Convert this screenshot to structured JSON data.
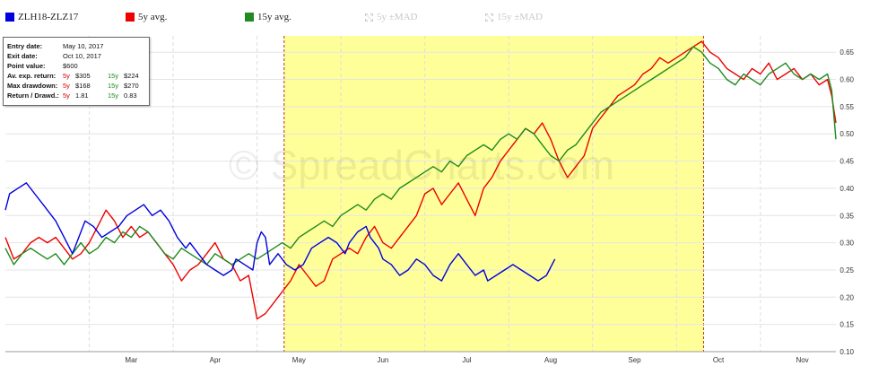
{
  "legend": {
    "items": [
      {
        "label": "ZLH18-ZLZ17",
        "color": "#0000dd",
        "enabled": true
      },
      {
        "label": "5y avg.",
        "color": "#ee0000",
        "enabled": true
      },
      {
        "label": "15y avg.",
        "color": "#1f8a1f",
        "enabled": true
      },
      {
        "label": "5y ±MAD",
        "color": "#cccccc",
        "enabled": false
      },
      {
        "label": "15y ±MAD",
        "color": "#cccccc",
        "enabled": false
      }
    ]
  },
  "info": {
    "entry_label": "Entry date:",
    "entry_value": "May 10, 2017",
    "exit_label": "Exit date:",
    "exit_value": "Oct 10, 2017",
    "point_label": "Point value:",
    "point_value": "$600",
    "avret_label": "Av. exp. return:",
    "avret_5y_tag": "5y",
    "avret_5y": "$305",
    "avret_15y_tag": "15y",
    "avret_15y": "$224",
    "maxdd_label": "Max drawdown:",
    "maxdd_5y_tag": "5y",
    "maxdd_5y": "$168",
    "maxdd_15y_tag": "15y",
    "maxdd_15y": "$270",
    "rd_label": "Return / Drawd.:",
    "rd_5y_tag": "5y",
    "rd_5y": "1.81",
    "rd_15y_tag": "15y",
    "rd_15y": "0.83"
  },
  "watermark": "© SpreadCharts.com",
  "chart_data": {
    "type": "line",
    "x_labels": [
      "Mar",
      "Apr",
      "May",
      "Jun",
      "Jul",
      "Aug",
      "Sep",
      "Oct",
      "Nov"
    ],
    "y_ticks": [
      "0.10",
      "0.15",
      "0.20",
      "0.25",
      "0.30",
      "0.35",
      "0.40",
      "0.45",
      "0.50",
      "0.55",
      "0.60",
      "0.65"
    ],
    "ylim": [
      0.1,
      0.68
    ],
    "xlim_months": [
      2.0,
      11.9
    ],
    "highlight": {
      "from": "May 10",
      "to": "Oct 10",
      "color": "#ffff99"
    },
    "series": [
      {
        "name": "ZLH18-ZLZ17",
        "color": "#0000dd",
        "points": [
          [
            2.0,
            0.36
          ],
          [
            2.05,
            0.39
          ],
          [
            2.15,
            0.4
          ],
          [
            2.25,
            0.41
          ],
          [
            2.35,
            0.39
          ],
          [
            2.45,
            0.37
          ],
          [
            2.6,
            0.34
          ],
          [
            2.7,
            0.31
          ],
          [
            2.8,
            0.28
          ],
          [
            2.85,
            0.3
          ],
          [
            2.95,
            0.34
          ],
          [
            3.05,
            0.33
          ],
          [
            3.15,
            0.31
          ],
          [
            3.25,
            0.32
          ],
          [
            3.35,
            0.33
          ],
          [
            3.45,
            0.35
          ],
          [
            3.55,
            0.36
          ],
          [
            3.65,
            0.37
          ],
          [
            3.75,
            0.35
          ],
          [
            3.85,
            0.36
          ],
          [
            3.95,
            0.34
          ],
          [
            4.05,
            0.31
          ],
          [
            4.15,
            0.29
          ],
          [
            4.2,
            0.3
          ],
          [
            4.3,
            0.28
          ],
          [
            4.4,
            0.26
          ],
          [
            4.5,
            0.25
          ],
          [
            4.6,
            0.24
          ],
          [
            4.7,
            0.25
          ],
          [
            4.75,
            0.27
          ],
          [
            4.85,
            0.26
          ],
          [
            4.95,
            0.25
          ],
          [
            5.0,
            0.3
          ],
          [
            5.05,
            0.32
          ],
          [
            5.1,
            0.31
          ],
          [
            5.15,
            0.26
          ],
          [
            5.25,
            0.28
          ],
          [
            5.35,
            0.26
          ],
          [
            5.45,
            0.25
          ],
          [
            5.55,
            0.26
          ],
          [
            5.65,
            0.29
          ],
          [
            5.75,
            0.3
          ],
          [
            5.85,
            0.31
          ],
          [
            5.95,
            0.3
          ],
          [
            6.05,
            0.28
          ],
          [
            6.1,
            0.3
          ],
          [
            6.2,
            0.32
          ],
          [
            6.3,
            0.33
          ],
          [
            6.35,
            0.31
          ],
          [
            6.45,
            0.29
          ],
          [
            6.5,
            0.27
          ],
          [
            6.6,
            0.26
          ],
          [
            6.7,
            0.24
          ],
          [
            6.8,
            0.25
          ],
          [
            6.9,
            0.27
          ],
          [
            7.0,
            0.26
          ],
          [
            7.1,
            0.24
          ],
          [
            7.2,
            0.23
          ],
          [
            7.3,
            0.26
          ],
          [
            7.4,
            0.28
          ],
          [
            7.5,
            0.26
          ],
          [
            7.6,
            0.24
          ],
          [
            7.7,
            0.25
          ],
          [
            7.75,
            0.23
          ],
          [
            7.85,
            0.24
          ],
          [
            7.95,
            0.25
          ],
          [
            8.05,
            0.26
          ],
          [
            8.15,
            0.25
          ],
          [
            8.25,
            0.24
          ],
          [
            8.35,
            0.23
          ],
          [
            8.45,
            0.24
          ],
          [
            8.55,
            0.27
          ]
        ]
      },
      {
        "name": "5y avg.",
        "color": "#ee0000",
        "points": [
          [
            2.0,
            0.31
          ],
          [
            2.1,
            0.27
          ],
          [
            2.2,
            0.28
          ],
          [
            2.3,
            0.3
          ],
          [
            2.4,
            0.31
          ],
          [
            2.5,
            0.3
          ],
          [
            2.6,
            0.31
          ],
          [
            2.7,
            0.29
          ],
          [
            2.8,
            0.27
          ],
          [
            2.9,
            0.28
          ],
          [
            3.0,
            0.3
          ],
          [
            3.1,
            0.33
          ],
          [
            3.2,
            0.36
          ],
          [
            3.3,
            0.34
          ],
          [
            3.4,
            0.31
          ],
          [
            3.5,
            0.33
          ],
          [
            3.6,
            0.31
          ],
          [
            3.7,
            0.32
          ],
          [
            3.8,
            0.3
          ],
          [
            3.9,
            0.28
          ],
          [
            4.0,
            0.26
          ],
          [
            4.1,
            0.23
          ],
          [
            4.2,
            0.25
          ],
          [
            4.3,
            0.26
          ],
          [
            4.4,
            0.28
          ],
          [
            4.5,
            0.3
          ],
          [
            4.6,
            0.27
          ],
          [
            4.7,
            0.26
          ],
          [
            4.8,
            0.23
          ],
          [
            4.9,
            0.24
          ],
          [
            5.0,
            0.16
          ],
          [
            5.1,
            0.17
          ],
          [
            5.2,
            0.19
          ],
          [
            5.3,
            0.21
          ],
          [
            5.4,
            0.23
          ],
          [
            5.5,
            0.26
          ],
          [
            5.6,
            0.24
          ],
          [
            5.7,
            0.22
          ],
          [
            5.8,
            0.23
          ],
          [
            5.9,
            0.27
          ],
          [
            6.0,
            0.28
          ],
          [
            6.1,
            0.29
          ],
          [
            6.2,
            0.28
          ],
          [
            6.3,
            0.31
          ],
          [
            6.4,
            0.33
          ],
          [
            6.5,
            0.3
          ],
          [
            6.6,
            0.29
          ],
          [
            6.7,
            0.31
          ],
          [
            6.8,
            0.33
          ],
          [
            6.9,
            0.35
          ],
          [
            7.0,
            0.39
          ],
          [
            7.1,
            0.4
          ],
          [
            7.2,
            0.37
          ],
          [
            7.3,
            0.39
          ],
          [
            7.4,
            0.41
          ],
          [
            7.5,
            0.38
          ],
          [
            7.6,
            0.35
          ],
          [
            7.7,
            0.4
          ],
          [
            7.8,
            0.42
          ],
          [
            7.9,
            0.45
          ],
          [
            8.0,
            0.47
          ],
          [
            8.1,
            0.49
          ],
          [
            8.2,
            0.51
          ],
          [
            8.3,
            0.5
          ],
          [
            8.4,
            0.52
          ],
          [
            8.5,
            0.49
          ],
          [
            8.6,
            0.45
          ],
          [
            8.7,
            0.42
          ],
          [
            8.8,
            0.44
          ],
          [
            8.9,
            0.46
          ],
          [
            9.0,
            0.51
          ],
          [
            9.1,
            0.53
          ],
          [
            9.2,
            0.55
          ],
          [
            9.3,
            0.57
          ],
          [
            9.4,
            0.58
          ],
          [
            9.5,
            0.59
          ],
          [
            9.6,
            0.61
          ],
          [
            9.7,
            0.62
          ],
          [
            9.8,
            0.64
          ],
          [
            9.9,
            0.63
          ],
          [
            10.0,
            0.64
          ],
          [
            10.1,
            0.65
          ],
          [
            10.2,
            0.66
          ],
          [
            10.3,
            0.67
          ],
          [
            10.4,
            0.65
          ],
          [
            10.5,
            0.64
          ],
          [
            10.6,
            0.62
          ],
          [
            10.7,
            0.61
          ],
          [
            10.8,
            0.6
          ],
          [
            10.9,
            0.62
          ],
          [
            11.0,
            0.61
          ],
          [
            11.1,
            0.63
          ],
          [
            11.2,
            0.6
          ],
          [
            11.3,
            0.61
          ],
          [
            11.4,
            0.62
          ],
          [
            11.5,
            0.6
          ],
          [
            11.6,
            0.61
          ],
          [
            11.7,
            0.59
          ],
          [
            11.8,
            0.6
          ],
          [
            11.85,
            0.57
          ],
          [
            11.9,
            0.52
          ]
        ]
      },
      {
        "name": "15y avg.",
        "color": "#1f8a1f",
        "points": [
          [
            2.0,
            0.29
          ],
          [
            2.1,
            0.26
          ],
          [
            2.2,
            0.28
          ],
          [
            2.3,
            0.29
          ],
          [
            2.4,
            0.28
          ],
          [
            2.5,
            0.27
          ],
          [
            2.6,
            0.28
          ],
          [
            2.7,
            0.26
          ],
          [
            2.8,
            0.28
          ],
          [
            2.9,
            0.3
          ],
          [
            3.0,
            0.28
          ],
          [
            3.1,
            0.29
          ],
          [
            3.2,
            0.31
          ],
          [
            3.3,
            0.3
          ],
          [
            3.4,
            0.32
          ],
          [
            3.5,
            0.31
          ],
          [
            3.6,
            0.33
          ],
          [
            3.7,
            0.32
          ],
          [
            3.8,
            0.3
          ],
          [
            3.9,
            0.28
          ],
          [
            4.0,
            0.27
          ],
          [
            4.1,
            0.29
          ],
          [
            4.2,
            0.28
          ],
          [
            4.3,
            0.27
          ],
          [
            4.4,
            0.26
          ],
          [
            4.5,
            0.28
          ],
          [
            4.6,
            0.27
          ],
          [
            4.7,
            0.26
          ],
          [
            4.8,
            0.27
          ],
          [
            4.9,
            0.28
          ],
          [
            5.0,
            0.27
          ],
          [
            5.1,
            0.28
          ],
          [
            5.2,
            0.29
          ],
          [
            5.3,
            0.3
          ],
          [
            5.4,
            0.29
          ],
          [
            5.5,
            0.31
          ],
          [
            5.6,
            0.32
          ],
          [
            5.7,
            0.33
          ],
          [
            5.8,
            0.34
          ],
          [
            5.9,
            0.33
          ],
          [
            6.0,
            0.35
          ],
          [
            6.1,
            0.36
          ],
          [
            6.2,
            0.37
          ],
          [
            6.3,
            0.36
          ],
          [
            6.4,
            0.38
          ],
          [
            6.5,
            0.39
          ],
          [
            6.6,
            0.38
          ],
          [
            6.7,
            0.4
          ],
          [
            6.8,
            0.41
          ],
          [
            6.9,
            0.42
          ],
          [
            7.0,
            0.43
          ],
          [
            7.1,
            0.44
          ],
          [
            7.2,
            0.43
          ],
          [
            7.3,
            0.45
          ],
          [
            7.4,
            0.44
          ],
          [
            7.5,
            0.46
          ],
          [
            7.6,
            0.47
          ],
          [
            7.7,
            0.48
          ],
          [
            7.8,
            0.47
          ],
          [
            7.9,
            0.49
          ],
          [
            8.0,
            0.5
          ],
          [
            8.1,
            0.49
          ],
          [
            8.2,
            0.51
          ],
          [
            8.3,
            0.5
          ],
          [
            8.4,
            0.48
          ],
          [
            8.5,
            0.46
          ],
          [
            8.6,
            0.45
          ],
          [
            8.7,
            0.47
          ],
          [
            8.8,
            0.48
          ],
          [
            8.9,
            0.5
          ],
          [
            9.0,
            0.52
          ],
          [
            9.1,
            0.54
          ],
          [
            9.2,
            0.55
          ],
          [
            9.3,
            0.56
          ],
          [
            9.4,
            0.57
          ],
          [
            9.5,
            0.58
          ],
          [
            9.6,
            0.59
          ],
          [
            9.7,
            0.6
          ],
          [
            9.8,
            0.61
          ],
          [
            9.9,
            0.62
          ],
          [
            10.0,
            0.63
          ],
          [
            10.1,
            0.64
          ],
          [
            10.2,
            0.66
          ],
          [
            10.3,
            0.65
          ],
          [
            10.4,
            0.63
          ],
          [
            10.5,
            0.62
          ],
          [
            10.6,
            0.6
          ],
          [
            10.7,
            0.59
          ],
          [
            10.8,
            0.61
          ],
          [
            10.9,
            0.6
          ],
          [
            11.0,
            0.59
          ],
          [
            11.1,
            0.61
          ],
          [
            11.2,
            0.62
          ],
          [
            11.3,
            0.63
          ],
          [
            11.4,
            0.61
          ],
          [
            11.5,
            0.6
          ],
          [
            11.6,
            0.61
          ],
          [
            11.7,
            0.6
          ],
          [
            11.8,
            0.61
          ],
          [
            11.85,
            0.58
          ],
          [
            11.9,
            0.49
          ]
        ]
      }
    ]
  }
}
